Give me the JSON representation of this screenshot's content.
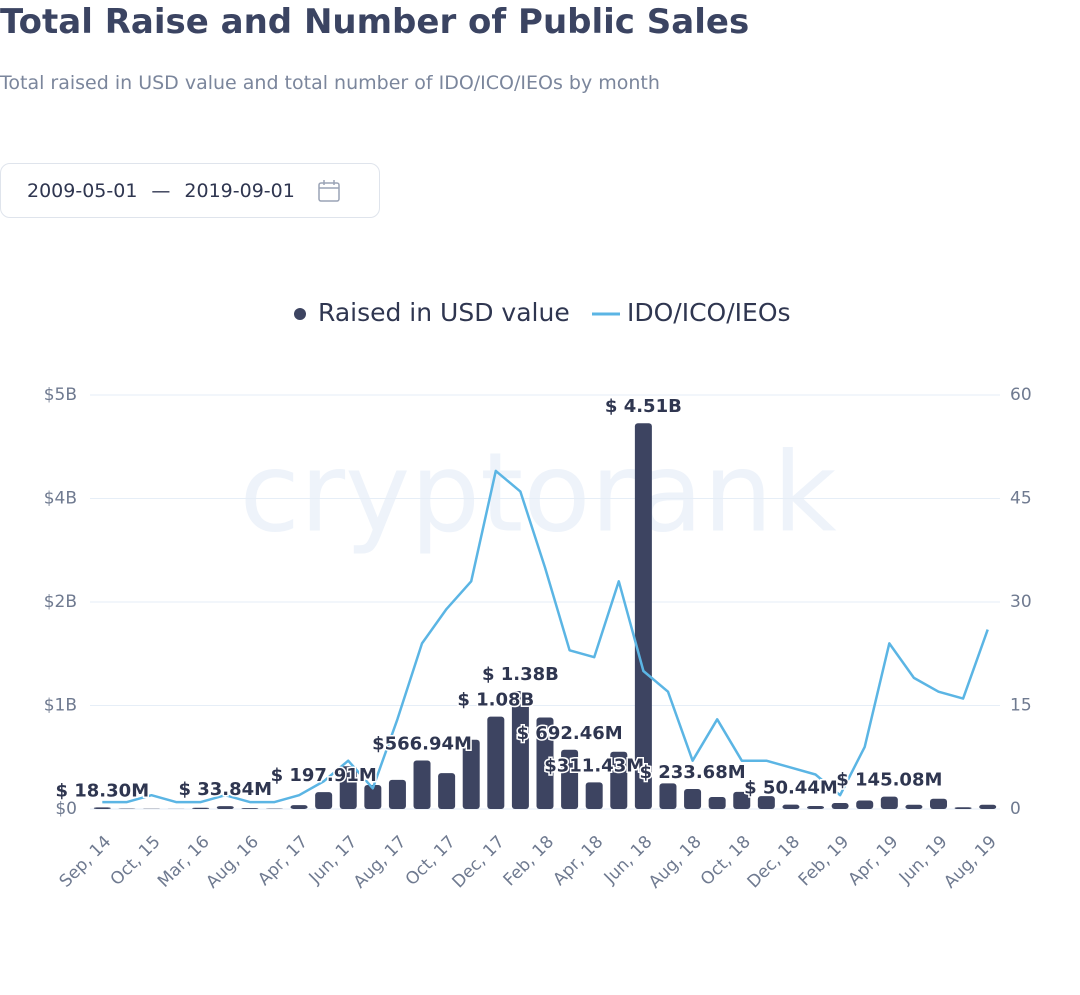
{
  "chart_data": {
    "type": "bar-line",
    "title": "Total Raise and Number of Public Sales",
    "subtitle": "Total raised in USD value and total number of IDO/ICO/IEOs by month",
    "watermark": "cryptorank",
    "categories": [
      "Sep, 14",
      null,
      "Oct, 15",
      null,
      "Mar, 16",
      null,
      "Aug, 16",
      null,
      "Apr, 17",
      null,
      "Jun, 17",
      null,
      "Aug, 17",
      null,
      "Oct, 17",
      null,
      "Dec, 17",
      null,
      "Feb, 18",
      null,
      "Apr, 18",
      null,
      "Jun, 18",
      null,
      "Aug, 18",
      null,
      "Oct, 18",
      null,
      "Dec, 18",
      null,
      "Feb, 19",
      null,
      "Apr, 19",
      null,
      "Jun, 19",
      null,
      "Aug, 19"
    ],
    "series": [
      {
        "name": "Raised in USD value",
        "color": "#3d4461",
        "values": [
          18300000,
          5000000,
          3000000,
          2000000,
          15000000,
          33840000,
          10000000,
          5000000,
          45000000,
          197910000,
          500000000,
          280000000,
          340000000,
          566940000,
          420000000,
          810000000,
          1080000000,
          1380000000,
          1070000000,
          692460000,
          311430000,
          670000000,
          4510000000,
          300000000,
          233680000,
          140000000,
          200000000,
          150000000,
          50440000,
          35000000,
          70000000,
          100000000,
          145080000,
          50000000,
          120000000,
          20000000,
          50000000
        ],
        "value_labels": [
          "$ 18.30M",
          null,
          null,
          null,
          null,
          "$ 33.84M",
          null,
          null,
          null,
          "$ 197.91M",
          null,
          null,
          null,
          "$566.94M",
          null,
          null,
          "$ 1.08B",
          "$ 1.38B",
          null,
          "$ 692.46M",
          "$311.43M",
          null,
          "$ 4.51B",
          null,
          "$ 233.68M",
          null,
          null,
          null,
          "$ 50.44M",
          null,
          null,
          null,
          "$ 145.08M",
          null,
          null,
          null,
          null
        ]
      },
      {
        "name": "IDO/ICO/IEOs",
        "color": "#5bb5e4",
        "axis": "y2",
        "values": [
          1,
          1,
          2,
          1,
          1,
          2,
          1,
          1,
          2,
          4,
          7,
          3,
          13,
          24,
          29,
          33,
          49,
          46,
          35,
          23,
          22,
          33,
          20,
          17,
          7,
          13,
          7,
          7,
          6,
          5,
          2,
          9,
          24,
          19,
          17,
          16,
          26
        ]
      }
    ],
    "ylim": [
      0,
      4840000000
    ],
    "yticks": [
      {
        "value": 0,
        "label": "$0"
      },
      {
        "value": 1210000000,
        "label": "$1B"
      },
      {
        "value": 2420000000,
        "label": "$2B"
      },
      {
        "value": 3630000000,
        "label": "$4B"
      },
      {
        "value": 4840000000,
        "label": "$5B"
      }
    ],
    "y2lim": [
      0,
      60
    ],
    "y2ticks": [
      0,
      15,
      30,
      45,
      60
    ],
    "grid": true,
    "legend": "top"
  },
  "date_range": {
    "start": "2009-05-01",
    "end": "2019-09-01"
  }
}
